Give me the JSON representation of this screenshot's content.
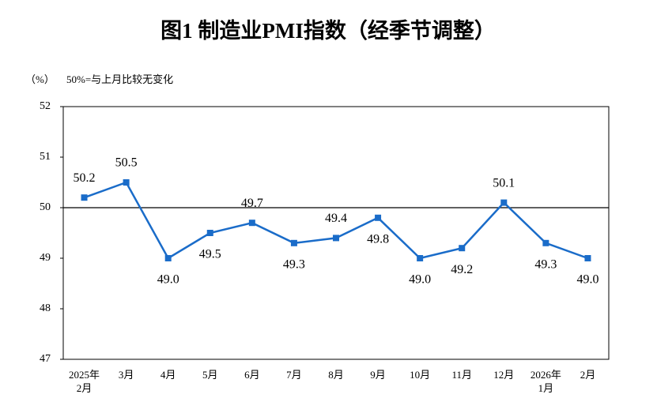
{
  "chart_data": {
    "type": "line",
    "title": "图1 制造业PMI指数（经季节调整）",
    "y_label": "（%）",
    "annotation": "50%=与上月比较无变化",
    "categories": [
      "2025年\n2月",
      "3月",
      "4月",
      "5月",
      "6月",
      "7月",
      "8月",
      "9月",
      "10月",
      "11月",
      "12月",
      "2026年\n1月",
      "2月"
    ],
    "series": [
      {
        "name": "制造业PMI",
        "color": "#1a6cc9",
        "values": [
          50.2,
          50.5,
          49.0,
          49.5,
          49.7,
          49.3,
          49.4,
          49.8,
          49.0,
          49.2,
          50.1,
          49.3,
          49.0
        ],
        "value_labels": [
          "50.2",
          "50.5",
          "49.0",
          "49.5",
          "49.7",
          "49.3",
          "49.4",
          "49.8",
          "49.0",
          "49.2",
          "50.1",
          "49.3",
          "49.0"
        ]
      }
    ],
    "ylim": [
      47,
      52
    ],
    "yticks": [
      47,
      48,
      49,
      50,
      51,
      52
    ],
    "reference_line": 50
  }
}
